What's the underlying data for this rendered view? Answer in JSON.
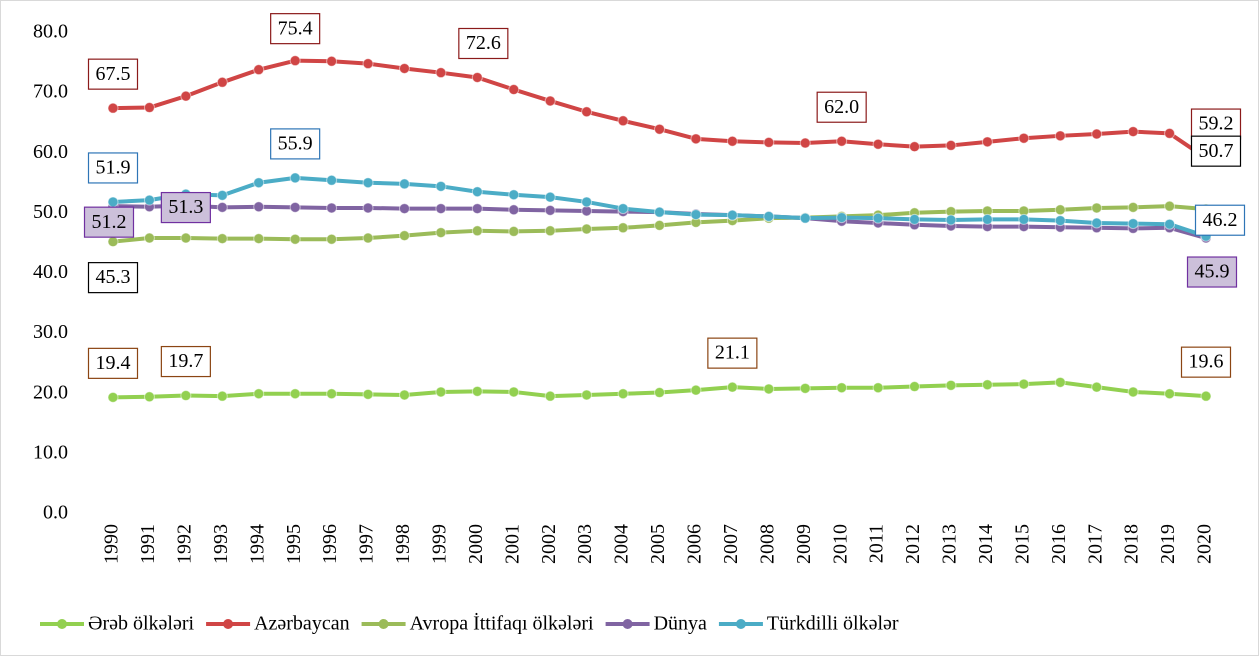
{
  "chart_data": {
    "type": "line",
    "categories": [
      "1990",
      "1991",
      "1992",
      "1993",
      "1994",
      "1995",
      "1996",
      "1997",
      "1998",
      "1999",
      "2000",
      "2001",
      "2002",
      "2003",
      "2004",
      "2005",
      "2006",
      "2007",
      "2008",
      "2009",
      "2010",
      "2011",
      "2012",
      "2013",
      "2014",
      "2015",
      "2016",
      "2017",
      "2018",
      "2019",
      "2020"
    ],
    "ylim": [
      0,
      80
    ],
    "yticks": [
      {
        "value": 0,
        "label": "0.0"
      },
      {
        "value": 10,
        "label": "10.0"
      },
      {
        "value": 20,
        "label": "20.0"
      },
      {
        "value": 30,
        "label": "30.0"
      },
      {
        "value": 40,
        "label": "40.0"
      },
      {
        "value": 50,
        "label": "50.0"
      },
      {
        "value": 60,
        "label": "60.0"
      },
      {
        "value": 70,
        "label": "70.0"
      },
      {
        "value": 80,
        "label": "80.0"
      }
    ],
    "legend": "bottom",
    "series": [
      {
        "name": "Ərəb ölkələri",
        "color": "#92d050",
        "values": [
          19.4,
          19.5,
          19.7,
          19.6,
          20.0,
          20.0,
          20.0,
          19.9,
          19.8,
          20.3,
          20.4,
          20.3,
          19.6,
          19.8,
          20.0,
          20.2,
          20.6,
          21.1,
          20.8,
          20.9,
          21.0,
          21.0,
          21.2,
          21.4,
          21.5,
          21.6,
          21.9,
          21.1,
          20.3,
          20.0,
          19.6
        ],
        "value_labels": [
          "19.4",
          null,
          "19.7",
          null,
          null,
          null,
          null,
          null,
          null,
          null,
          null,
          null,
          null,
          null,
          null,
          null,
          null,
          "21.1",
          null,
          null,
          null,
          null,
          null,
          null,
          null,
          null,
          null,
          null,
          null,
          null,
          "19.6"
        ]
      },
      {
        "name": "Azərbaycan",
        "color": "#d04545",
        "values": [
          67.5,
          67.6,
          69.5,
          71.8,
          73.9,
          75.4,
          75.3,
          74.9,
          74.1,
          73.4,
          72.6,
          70.6,
          68.7,
          66.9,
          65.4,
          64.0,
          62.4,
          62.0,
          61.8,
          61.7,
          62.0,
          61.5,
          61.1,
          61.3,
          61.9,
          62.5,
          62.9,
          63.2,
          63.6,
          63.3,
          59.2
        ],
        "value_labels": [
          "67.5",
          null,
          null,
          null,
          null,
          "75.4",
          null,
          null,
          null,
          null,
          "72.6",
          null,
          null,
          null,
          null,
          null,
          null,
          null,
          null,
          null,
          "62.0",
          null,
          null,
          null,
          null,
          null,
          null,
          null,
          null,
          null,
          "59.2"
        ]
      },
      {
        "name": "Avropa İttifaqı ölkələri",
        "color": "#9bbb59",
        "values": [
          45.3,
          45.9,
          45.9,
          45.8,
          45.8,
          45.7,
          45.7,
          45.9,
          46.3,
          46.8,
          47.1,
          47.0,
          47.1,
          47.4,
          47.6,
          48.0,
          48.5,
          48.8,
          49.2,
          49.3,
          49.5,
          49.7,
          50.1,
          50.3,
          50.4,
          50.4,
          50.6,
          50.9,
          51.0,
          51.2,
          50.7
        ],
        "value_labels": [
          "45.3",
          null,
          null,
          null,
          null,
          null,
          null,
          null,
          null,
          null,
          null,
          null,
          null,
          null,
          null,
          null,
          null,
          null,
          null,
          null,
          null,
          null,
          null,
          null,
          null,
          null,
          null,
          null,
          null,
          null,
          "50.7"
        ]
      },
      {
        "name": "Dünya",
        "color": "#8064a2",
        "values": [
          51.2,
          51.1,
          51.3,
          51.0,
          51.1,
          51.0,
          50.9,
          50.9,
          50.8,
          50.8,
          50.8,
          50.6,
          50.5,
          50.4,
          50.3,
          50.2,
          49.9,
          49.7,
          49.5,
          49.2,
          48.7,
          48.4,
          48.1,
          47.9,
          47.8,
          47.8,
          47.7,
          47.6,
          47.5,
          47.6,
          45.9
        ],
        "value_labels": [
          "51.2",
          null,
          "51.3",
          null,
          null,
          null,
          null,
          null,
          null,
          null,
          null,
          null,
          null,
          null,
          null,
          null,
          null,
          null,
          null,
          null,
          null,
          null,
          null,
          null,
          null,
          null,
          null,
          null,
          null,
          null,
          "45.9"
        ]
      },
      {
        "name": "Türkdilli ölkələr",
        "color": "#4bacc6",
        "values": [
          51.9,
          52.2,
          53.2,
          53.0,
          55.1,
          55.9,
          55.5,
          55.1,
          54.9,
          54.5,
          53.6,
          53.1,
          52.7,
          51.9,
          50.8,
          50.2,
          49.8,
          49.7,
          49.5,
          49.2,
          49.3,
          49.2,
          49.0,
          48.9,
          49.0,
          49.0,
          48.8,
          48.4,
          48.3,
          48.2,
          46.2
        ],
        "value_labels": [
          "51.9",
          null,
          null,
          null,
          null,
          "55.9",
          null,
          null,
          null,
          null,
          null,
          null,
          null,
          null,
          null,
          null,
          null,
          null,
          null,
          null,
          null,
          null,
          null,
          null,
          null,
          null,
          null,
          null,
          null,
          null,
          "46.2"
        ]
      }
    ]
  }
}
